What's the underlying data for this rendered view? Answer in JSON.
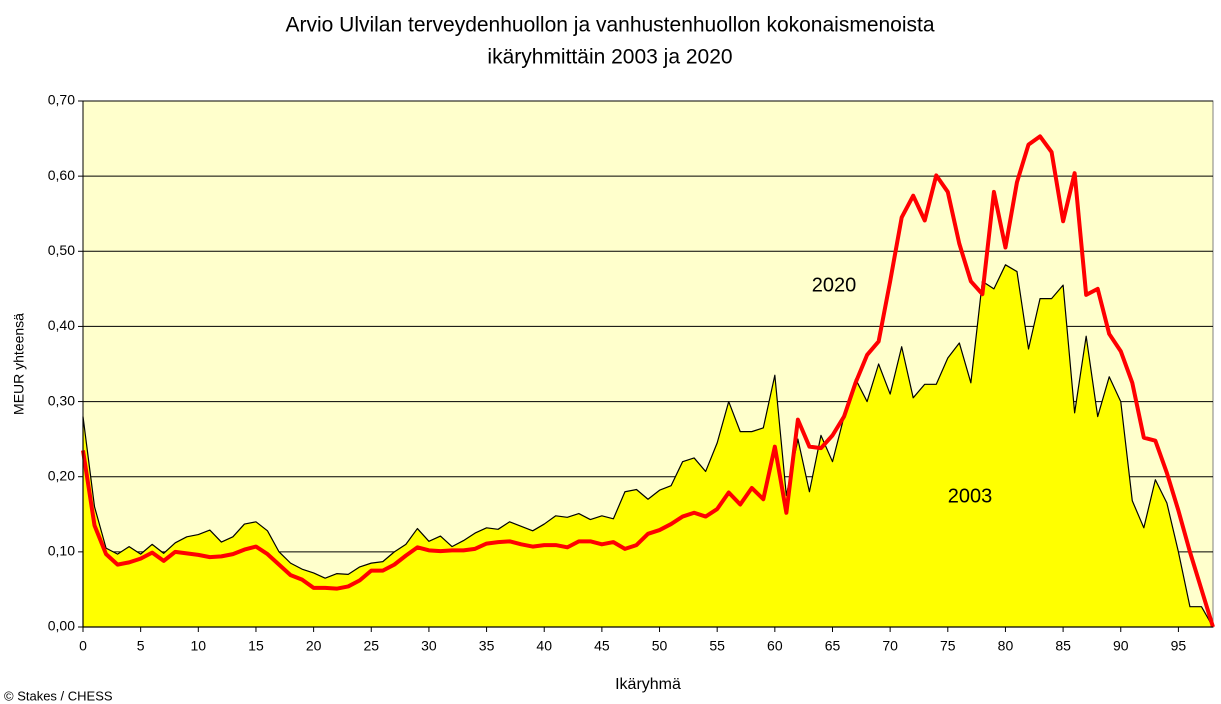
{
  "chart_data": {
    "type": "area",
    "title": [
      "Arvio Ulvilan terveydenhuollon ja vanhustenhuollon kokonaismenoista",
      "ikäryhmittäin 2003 ja 2020"
    ],
    "x_label": "Ikäryhmä",
    "y_label": "MEUR yhteensä",
    "source": "© Stakes  / CHESS",
    "x": [
      0,
      1,
      2,
      3,
      4,
      5,
      6,
      7,
      8,
      9,
      10,
      11,
      12,
      13,
      14,
      15,
      16,
      17,
      18,
      19,
      20,
      21,
      22,
      23,
      24,
      25,
      26,
      27,
      28,
      29,
      30,
      31,
      32,
      33,
      34,
      35,
      36,
      37,
      38,
      39,
      40,
      41,
      42,
      43,
      44,
      45,
      46,
      47,
      48,
      49,
      50,
      51,
      52,
      53,
      54,
      55,
      56,
      57,
      58,
      59,
      60,
      61,
      62,
      63,
      64,
      65,
      66,
      67,
      68,
      69,
      70,
      71,
      72,
      73,
      74,
      75,
      76,
      77,
      78,
      79,
      80,
      81,
      82,
      83,
      84,
      85,
      86,
      87,
      88,
      89,
      90,
      91,
      92,
      93,
      94,
      95,
      96,
      97,
      98
    ],
    "xlim": [
      0,
      98
    ],
    "xticks": [
      0,
      5,
      10,
      15,
      20,
      25,
      30,
      35,
      40,
      45,
      50,
      55,
      60,
      65,
      70,
      75,
      80,
      85,
      90,
      95
    ],
    "ylim": [
      0,
      0.7
    ],
    "yticks": [
      {
        "value": 0,
        "label": "0,00"
      },
      {
        "value": 0.1,
        "label": "0,10"
      },
      {
        "value": 0.2,
        "label": "0,20"
      },
      {
        "value": 0.3,
        "label": "0,30"
      },
      {
        "value": 0.4,
        "label": "0,40"
      },
      {
        "value": 0.5,
        "label": "0,50"
      },
      {
        "value": 0.6,
        "label": "0,60"
      },
      {
        "value": 0.7,
        "label": "0,70"
      }
    ],
    "grid": true,
    "background": "#ffffcc",
    "series": [
      {
        "name": "2003",
        "type": "area",
        "color": "#ffff00",
        "line_color": "#000000",
        "values": [
          0.28,
          0.16,
          0.105,
          0.097,
          0.107,
          0.097,
          0.11,
          0.098,
          0.112,
          0.12,
          0.123,
          0.129,
          0.113,
          0.12,
          0.137,
          0.14,
          0.128,
          0.1,
          0.085,
          0.077,
          0.072,
          0.065,
          0.071,
          0.07,
          0.08,
          0.085,
          0.087,
          0.1,
          0.11,
          0.131,
          0.114,
          0.121,
          0.107,
          0.115,
          0.125,
          0.132,
          0.13,
          0.14,
          0.134,
          0.128,
          0.137,
          0.148,
          0.146,
          0.151,
          0.143,
          0.148,
          0.144,
          0.18,
          0.183,
          0.17,
          0.182,
          0.188,
          0.22,
          0.225,
          0.207,
          0.245,
          0.3,
          0.26,
          0.26,
          0.265,
          0.335,
          0.175,
          0.25,
          0.18,
          0.255,
          0.22,
          0.28,
          0.33,
          0.3,
          0.35,
          0.31,
          0.373,
          0.305,
          0.323,
          0.323,
          0.358,
          0.378,
          0.325,
          0.46,
          0.45,
          0.482,
          0.473,
          0.37,
          0.437,
          0.437,
          0.455,
          0.285,
          0.387,
          0.28,
          0.333,
          0.3,
          0.168,
          0.132,
          0.196,
          0.165,
          0.1,
          0.027,
          0.027,
          0.0
        ]
      },
      {
        "name": "2020",
        "type": "line",
        "color": "#ff0000",
        "values": [
          0.235,
          0.135,
          0.097,
          0.083,
          0.086,
          0.091,
          0.099,
          0.088,
          0.1,
          0.098,
          0.096,
          0.093,
          0.094,
          0.097,
          0.103,
          0.107,
          0.097,
          0.083,
          0.069,
          0.063,
          0.052,
          0.052,
          0.051,
          0.054,
          0.062,
          0.075,
          0.075,
          0.083,
          0.095,
          0.106,
          0.102,
          0.101,
          0.102,
          0.102,
          0.104,
          0.111,
          0.113,
          0.114,
          0.11,
          0.107,
          0.109,
          0.109,
          0.106,
          0.114,
          0.114,
          0.11,
          0.113,
          0.104,
          0.109,
          0.124,
          0.129,
          0.137,
          0.147,
          0.152,
          0.147,
          0.157,
          0.179,
          0.163,
          0.185,
          0.17,
          0.24,
          0.152,
          0.276,
          0.24,
          0.238,
          0.255,
          0.28,
          0.325,
          0.362,
          0.38,
          0.46,
          0.545,
          0.574,
          0.541,
          0.601,
          0.579,
          0.51,
          0.46,
          0.443,
          0.579,
          0.505,
          0.592,
          0.642,
          0.653,
          0.632,
          0.54,
          0.604,
          0.442,
          0.45,
          0.39,
          0.367,
          0.325,
          0.252,
          0.248,
          0.205,
          0.155,
          0.1,
          0.05,
          0.0
        ]
      }
    ]
  }
}
